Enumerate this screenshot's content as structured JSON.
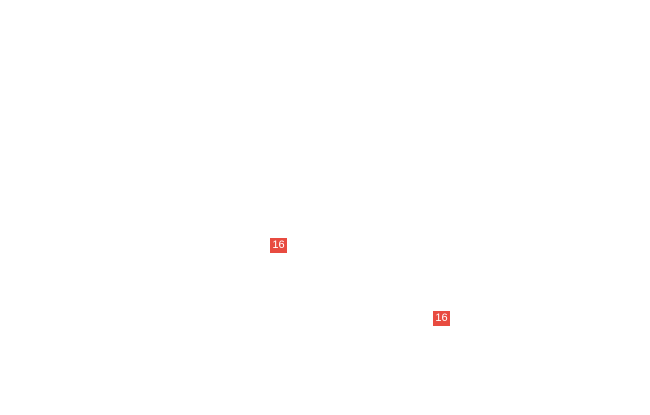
{
  "page": {
    "background_color": "#ffffff"
  },
  "callout_style": {
    "badge_color": "#e84b40",
    "text_color": "#ffffff"
  },
  "callouts": [
    {
      "label": "16"
    },
    {
      "label": "16"
    }
  ]
}
